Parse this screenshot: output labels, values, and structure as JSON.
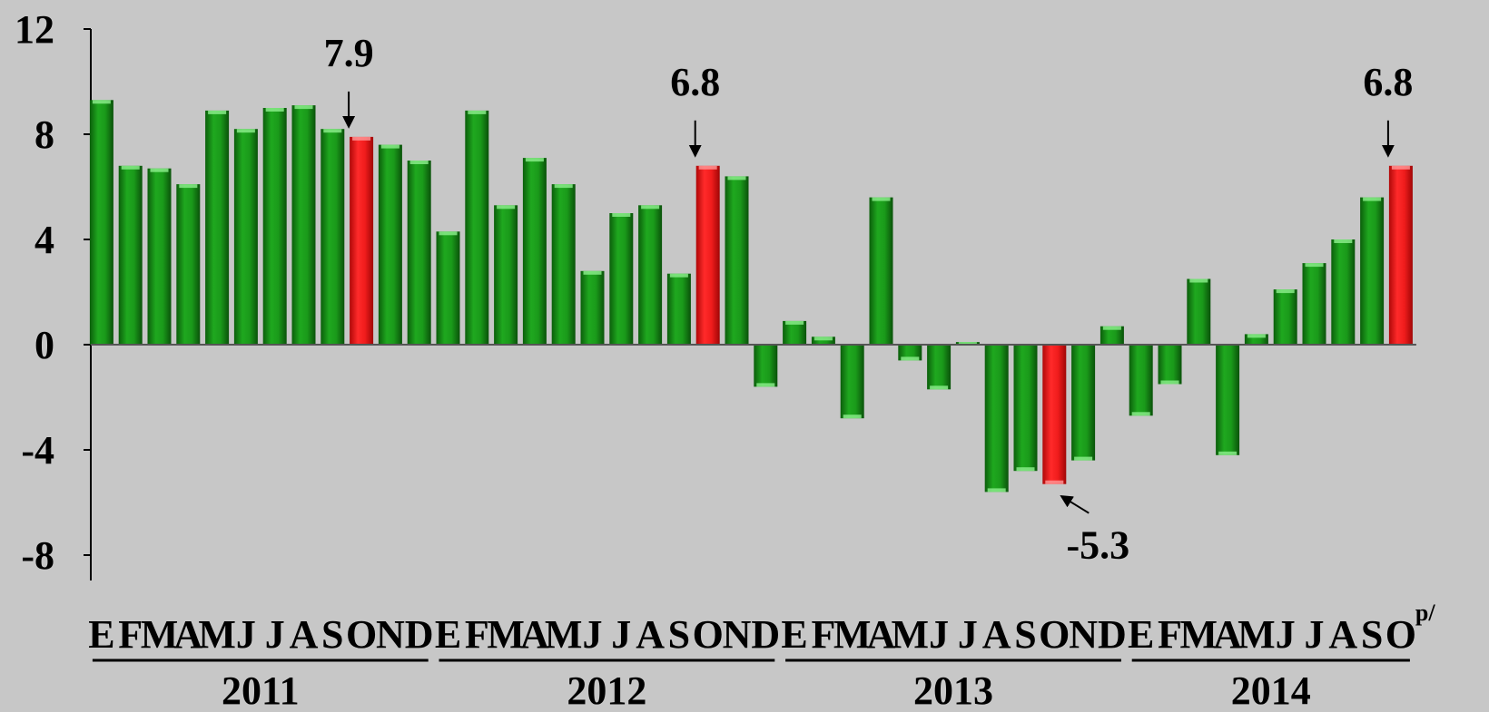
{
  "chart_data": {
    "type": "bar",
    "ylim": [
      -8,
      12
    ],
    "yticks": [
      "12",
      "8",
      "4",
      "0",
      "-4",
      "-8"
    ],
    "ytick_values": [
      12,
      8,
      4,
      0,
      -4,
      -8
    ],
    "grid": false,
    "colors": {
      "normal": "#1f9a1f",
      "highlight": "#ee1c1c",
      "background": "#c7c7c7"
    },
    "month_labels": [
      "E",
      "F",
      "M",
      "A",
      "M",
      "J",
      "J",
      "A",
      "S",
      "O",
      "N",
      "D",
      "E",
      "F",
      "M",
      "A",
      "M",
      "J",
      "J",
      "A",
      "S",
      "O",
      "N",
      "D",
      "E",
      "F",
      "M",
      "A",
      "M",
      "J",
      "J",
      "A",
      "S",
      "O",
      "N",
      "D",
      "E",
      "F",
      "M",
      "A",
      "M",
      "J",
      "J",
      "A",
      "S",
      "O"
    ],
    "values": [
      9.3,
      6.8,
      6.7,
      6.1,
      8.9,
      8.2,
      9.0,
      9.1,
      8.2,
      7.9,
      7.6,
      7.0,
      4.3,
      8.9,
      5.3,
      7.1,
      6.1,
      2.8,
      5.0,
      5.3,
      2.7,
      6.8,
      6.4,
      -1.6,
      0.9,
      0.3,
      -2.8,
      5.6,
      -0.6,
      -1.7,
      0.1,
      -5.6,
      -4.8,
      -5.3,
      -4.4,
      0.7,
      -2.7,
      -1.5,
      2.5,
      -4.2,
      0.4,
      2.1,
      3.1,
      4.0,
      5.6,
      6.8
    ],
    "highlight_indices": [
      9,
      21,
      33,
      45
    ],
    "annotations": [
      {
        "index": 9,
        "text": "7.9"
      },
      {
        "index": 21,
        "text": "6.8"
      },
      {
        "index": 33,
        "text": "-5.3"
      },
      {
        "index": 45,
        "text": "6.8"
      }
    ],
    "years": [
      {
        "label": "2011",
        "start": 0,
        "end": 11
      },
      {
        "label": "2012",
        "start": 12,
        "end": 23
      },
      {
        "label": "2013",
        "start": 24,
        "end": 35
      },
      {
        "label": "2014",
        "start": 36,
        "end": 45
      }
    ],
    "superscript": "p/"
  }
}
